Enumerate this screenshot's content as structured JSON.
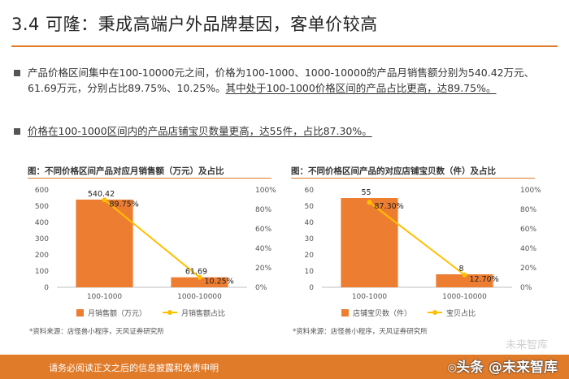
{
  "title": "3.4 可隆：秉成高端户外品牌基因，客单价较高",
  "bullets": {
    "b1_part1": "产品价格区间集中在100-10000元之间，价格为100-1000、1000-10000的产品月销售额分别为540.42万元、61.69万元，分别占比89.75%、10.25%。",
    "b1_part2": "其中处于100-1000价格区间的产品占比更高，达89.75%。",
    "b2": "价格在100-1000区间内的产品店铺宝贝数量更高，达55件，占比87.30%。"
  },
  "charts": {
    "left_title": "图：不同价格区间产品对应月销售额（万元）及占比",
    "right_title": "图：不同价格区间产品的对应店铺宝贝数（件）及占比"
  },
  "sources": {
    "left": "*资料来源：店怪兽小程序，天风证券研究所",
    "right": "*资料来源：店怪兽小程序，天风证券研究所"
  },
  "footer": {
    "disclaimer": "请务必阅读正文之后的信息披露和免责申明",
    "watermark": "头条 @未来智库",
    "watermark_ghost": "未来智库"
  },
  "colors": {
    "accent": "#e07b2a",
    "bar": "#ed7d31",
    "line": "#ffc000"
  },
  "chart_data": [
    {
      "type": "bar",
      "title": "图：不同价格区间产品对应月销售额（万元）及占比",
      "categories": [
        "100-1000",
        "1000-10000"
      ],
      "series": [
        {
          "name": "月销售额（万元）",
          "type": "bar",
          "axis": "left",
          "values": [
            540.42,
            61.69
          ],
          "labels": [
            "540.42",
            "61.69"
          ]
        },
        {
          "name": "月销售额占比",
          "type": "line",
          "axis": "right",
          "values": [
            89.75,
            10.25
          ],
          "labels": [
            "89.75%",
            "10.25%"
          ]
        }
      ],
      "y_left": {
        "min": 0,
        "max": 600,
        "ticks": [
          "0",
          "100",
          "200",
          "300",
          "400",
          "500",
          "600"
        ]
      },
      "y_right": {
        "min": 0,
        "max": 100,
        "ticks": [
          "0%",
          "20%",
          "40%",
          "60%",
          "80%",
          "100%"
        ]
      },
      "legend": "bottom"
    },
    {
      "type": "bar",
      "title": "图：不同价格区间产品的对应店铺宝贝数（件）及占比",
      "categories": [
        "100-1000",
        "1000-10000"
      ],
      "series": [
        {
          "name": "店铺宝贝数（件）",
          "type": "bar",
          "axis": "left",
          "values": [
            55,
            8
          ],
          "labels": [
            "55",
            "8"
          ]
        },
        {
          "name": "宝贝占比",
          "type": "line",
          "axis": "right",
          "values": [
            87.3,
            12.7
          ],
          "labels": [
            "87.30%",
            "12.70%"
          ]
        }
      ],
      "y_left": {
        "min": 0,
        "max": 60,
        "ticks": [
          "0",
          "10",
          "20",
          "30",
          "40",
          "50",
          "60"
        ]
      },
      "y_right": {
        "min": 0,
        "max": 100,
        "ticks": [
          "0%",
          "20%",
          "40%",
          "60%",
          "80%",
          "100%"
        ]
      },
      "legend": "bottom"
    }
  ]
}
